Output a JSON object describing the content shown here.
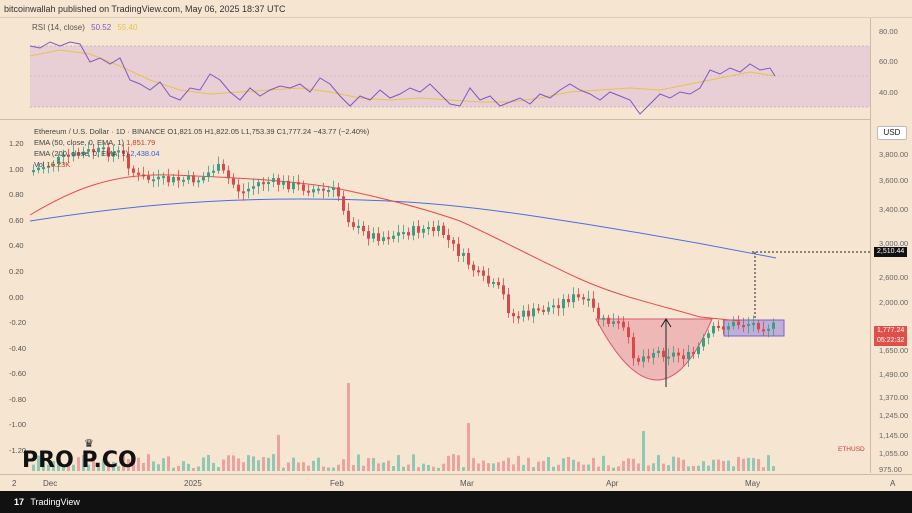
{
  "header": {
    "text": "bitcoinwallah published on TradingView.com, May 06, 2025 18:37 UTC"
  },
  "rsi": {
    "label": "RSI (14, close)",
    "value": "50.52",
    "ma_value": "55.40",
    "levels": [
      "80.00",
      "60.00",
      "40.00"
    ],
    "colors": {
      "line": "#7e57c2",
      "ma": "#e6c250",
      "band": "#e8cfd6"
    }
  },
  "legend": {
    "symbol_line": "Ethereum / U.S. Dollar · 1D · BINANCE  O1,821.05  H1,822.05  L1,753.39  C1,777.24  −43.77 (−2.40%)",
    "ema50_label": "EMA (50, close, 0, EMA, 1)",
    "ema50_value": "1,851.79",
    "ema200_label": "EMA (200, close, 0, EMA, 1)",
    "ema200_value": "2,438.04",
    "vol_label": "Vol",
    "vol_value": "16.23K"
  },
  "price_axis": {
    "usd_button": "USD",
    "labels": [
      "3,800.00",
      "3,600.00",
      "3,400.00",
      "3,000.00",
      "2,600.00",
      "2,400.00",
      "2,000.00",
      "1,800.00",
      "1,650.00",
      "1,490.00",
      "1,370.00",
      "1,245.00",
      "1,145.00",
      "1,055.00",
      "975.00"
    ],
    "target_tag": "2,510.44",
    "price_tag": "1,777.24",
    "countdown_tag": "05:22:32",
    "symbol_tag": "ETHUSD"
  },
  "left_axis": {
    "labels": [
      "1.20",
      "1.00",
      "0.80",
      "0.60",
      "0.40",
      "0.20",
      "0.00",
      "-0.20",
      "-0.40",
      "-0.60",
      "-0.80",
      "-1.00",
      "-1.20"
    ]
  },
  "time_axis": {
    "labels": [
      "2",
      "Dec",
      "2025",
      "Feb",
      "Mar",
      "Apr",
      "May"
    ],
    "corner": "A"
  },
  "footer": {
    "brand": "TradingView"
  },
  "watermark": {
    "text": "PRO  P.CO"
  },
  "chart_data": {
    "type": "candlestick",
    "symbol": "ETHUSD",
    "x_range": [
      "2024-12-02",
      "2025-05-06"
    ],
    "y_range": [
      975,
      3900
    ],
    "emas": [
      {
        "name": "EMA 50",
        "color": "#e0504a"
      },
      {
        "name": "EMA 200",
        "color": "#4a6ee0"
      }
    ],
    "pattern": "cup and handle",
    "target": 2510.44,
    "last_close": 1777.24
  }
}
